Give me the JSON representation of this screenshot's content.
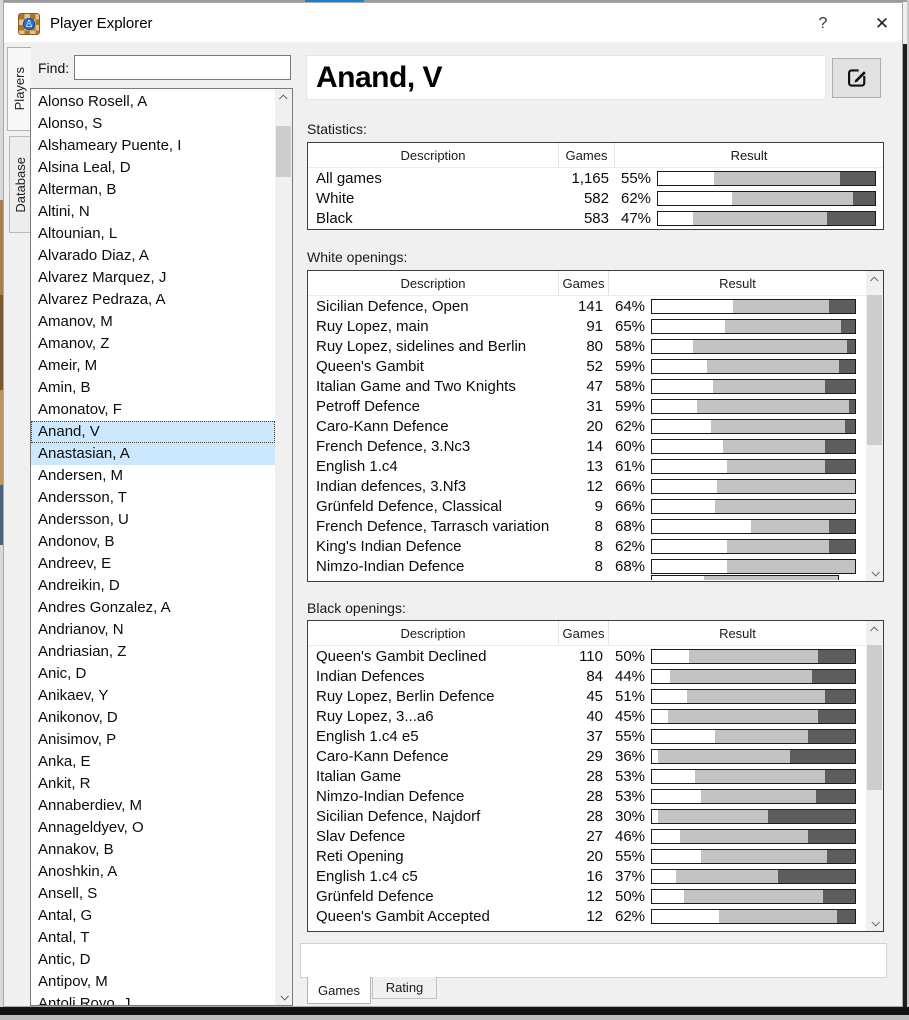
{
  "window": {
    "title": "Player Explorer",
    "help_label": "?",
    "close_label": "✕"
  },
  "left_pane": {
    "tabs": [
      {
        "label": "Players",
        "active": true
      },
      {
        "label": "Database",
        "active": false
      }
    ],
    "find_label": "Find:",
    "find_value": "",
    "players": [
      {
        "name": "Alonso Rosell, A"
      },
      {
        "name": "Alonso, S"
      },
      {
        "name": "Alshameary Puente, I"
      },
      {
        "name": "Alsina Leal, D"
      },
      {
        "name": "Alterman, B"
      },
      {
        "name": "Altini, N"
      },
      {
        "name": "Altounian, L"
      },
      {
        "name": "Alvarado Diaz, A"
      },
      {
        "name": "Alvarez Marquez, J"
      },
      {
        "name": "Alvarez Pedraza, A"
      },
      {
        "name": "Amanov, M"
      },
      {
        "name": "Amanov, Z"
      },
      {
        "name": "Ameir, M"
      },
      {
        "name": "Amin, B"
      },
      {
        "name": "Amonatov, F"
      },
      {
        "name": "Anand, V",
        "state": "selected"
      },
      {
        "name": "Anastasian, A",
        "state": "highlighted"
      },
      {
        "name": "Andersen, M"
      },
      {
        "name": "Andersson, T"
      },
      {
        "name": "Andersson, U"
      },
      {
        "name": "Andonov, B"
      },
      {
        "name": "Andreev, E"
      },
      {
        "name": "Andreikin, D"
      },
      {
        "name": "Andres Gonzalez, A"
      },
      {
        "name": "Andrianov, N"
      },
      {
        "name": "Andriasian, Z"
      },
      {
        "name": "Anic, D"
      },
      {
        "name": "Anikaev, Y"
      },
      {
        "name": "Anikonov, D"
      },
      {
        "name": "Anisimov, P"
      },
      {
        "name": "Anka, E"
      },
      {
        "name": "Ankit, R"
      },
      {
        "name": "Annaberdiev, M"
      },
      {
        "name": "Annageldyev, O"
      },
      {
        "name": "Annakov, B"
      },
      {
        "name": "Anoshkin, A"
      },
      {
        "name": "Ansell, S"
      },
      {
        "name": "Antal, G"
      },
      {
        "name": "Antal, T"
      },
      {
        "name": "Antic, D"
      },
      {
        "name": "Antipov, M"
      },
      {
        "name": "Antoli Royo, J"
      }
    ]
  },
  "detail": {
    "player_name": "Anand, V",
    "statistics": {
      "label": "Statistics:",
      "headers": [
        "Description",
        "Games",
        "Result"
      ],
      "rows": [
        {
          "description": "All games",
          "games": "1,165",
          "pct": "55%",
          "win": 26,
          "loss": 16
        },
        {
          "description": "White",
          "games": "582",
          "pct": "62%",
          "win": 34,
          "loss": 10
        },
        {
          "description": "Black",
          "games": "583",
          "pct": "47%",
          "win": 16,
          "loss": 22
        }
      ]
    },
    "white_openings": {
      "label": "White openings:",
      "headers": [
        "Description",
        "Games",
        "Result"
      ],
      "rows": [
        {
          "description": "Sicilian Defence, Open",
          "games": "141",
          "pct": "64%",
          "win": 40,
          "loss": 13
        },
        {
          "description": "Ruy Lopez, main",
          "games": "91",
          "pct": "65%",
          "win": 36,
          "loss": 7
        },
        {
          "description": "Ruy Lopez, sidelines and Berlin",
          "games": "80",
          "pct": "58%",
          "win": 20,
          "loss": 4
        },
        {
          "description": "Queen's Gambit",
          "games": "52",
          "pct": "59%",
          "win": 27,
          "loss": 8
        },
        {
          "description": "Italian Game and Two Knights",
          "games": "47",
          "pct": "58%",
          "win": 30,
          "loss": 15
        },
        {
          "description": "Petroff Defence",
          "games": "31",
          "pct": "59%",
          "win": 22,
          "loss": 3
        },
        {
          "description": "Caro-Kann Defence",
          "games": "20",
          "pct": "62%",
          "win": 29,
          "loss": 5
        },
        {
          "description": "French Defence, 3.Nc3",
          "games": "14",
          "pct": "60%",
          "win": 35,
          "loss": 15
        },
        {
          "description": "English 1.c4",
          "games": "13",
          "pct": "61%",
          "win": 37,
          "loss": 15
        },
        {
          "description": "Indian defences, 3.Nf3",
          "games": "12",
          "pct": "66%",
          "win": 32,
          "loss": 0
        },
        {
          "description": "Grünfeld Defence, Classical",
          "games": "9",
          "pct": "66%",
          "win": 31,
          "loss": 0
        },
        {
          "description": "French Defence, Tarrasch variation",
          "games": "8",
          "pct": "68%",
          "win": 49,
          "loss": 13
        },
        {
          "description": "King's Indian Defence",
          "games": "8",
          "pct": "62%",
          "win": 37,
          "loss": 13
        },
        {
          "description": "Nimzo-Indian Defence",
          "games": "8",
          "pct": "68%",
          "win": 37,
          "loss": 0
        }
      ]
    },
    "black_openings": {
      "label": "Black openings:",
      "headers": [
        "Description",
        "Games",
        "Result"
      ],
      "rows": [
        {
          "description": "Queen's Gambit Declined",
          "games": "110",
          "pct": "50%",
          "win": 18,
          "loss": 18
        },
        {
          "description": "Indian Defences",
          "games": "84",
          "pct": "44%",
          "win": 9,
          "loss": 21
        },
        {
          "description": "Ruy Lopez, Berlin Defence",
          "games": "45",
          "pct": "51%",
          "win": 17,
          "loss": 15
        },
        {
          "description": "Ruy Lopez, 3...a6",
          "games": "40",
          "pct": "45%",
          "win": 8,
          "loss": 18
        },
        {
          "description": "English 1.c4 e5",
          "games": "37",
          "pct": "55%",
          "win": 31,
          "loss": 23
        },
        {
          "description": "Caro-Kann Defence",
          "games": "29",
          "pct": "36%",
          "win": 3,
          "loss": 32
        },
        {
          "description": "Italian Game",
          "games": "28",
          "pct": "53%",
          "win": 21,
          "loss": 15
        },
        {
          "description": "Nimzo-Indian Defence",
          "games": "28",
          "pct": "53%",
          "win": 24,
          "loss": 19
        },
        {
          "description": "Sicilian Defence, Najdorf",
          "games": "28",
          "pct": "30%",
          "win": 3,
          "loss": 43
        },
        {
          "description": "Slav Defence",
          "games": "27",
          "pct": "46%",
          "win": 14,
          "loss": 23
        },
        {
          "description": "Reti Opening",
          "games": "20",
          "pct": "55%",
          "win": 24,
          "loss": 14
        },
        {
          "description": "English 1.c4 c5",
          "games": "16",
          "pct": "37%",
          "win": 12,
          "loss": 38
        },
        {
          "description": "Grünfeld Defence",
          "games": "12",
          "pct": "50%",
          "win": 16,
          "loss": 16
        },
        {
          "description": "Queen's Gambit Accepted",
          "games": "12",
          "pct": "62%",
          "win": 33,
          "loss": 9
        }
      ]
    },
    "bottom_tabs": [
      {
        "label": "Games",
        "active": true
      },
      {
        "label": "Rating",
        "active": false
      }
    ]
  },
  "colors": {
    "selection_blue": "#cce8ff",
    "bar_draw_grey": "#c3c3c3",
    "bar_loss_grey": "#5d5d5d",
    "accent_strip_blue": "#1a80d0"
  }
}
